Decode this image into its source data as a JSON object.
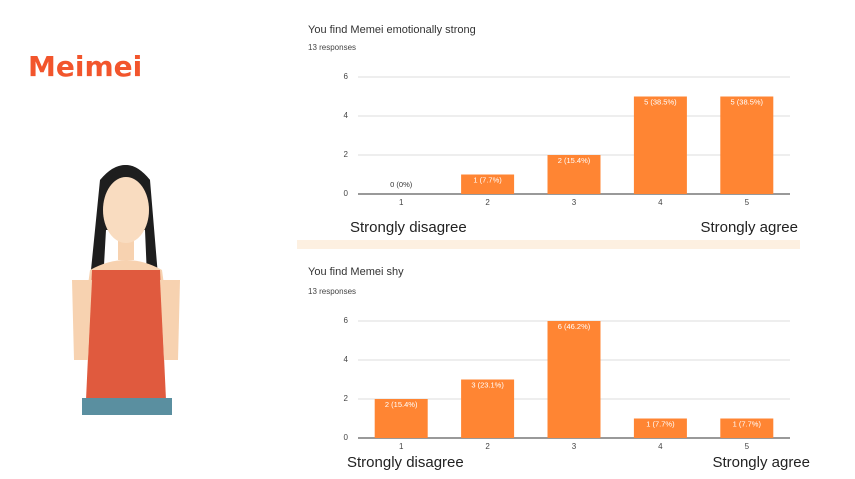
{
  "heading": "Meimei",
  "chart_data": [
    {
      "type": "bar",
      "title": "You find Memei emotionally strong",
      "subtitle": "13 responses",
      "categories": [
        "1",
        "2",
        "3",
        "4",
        "5"
      ],
      "values": [
        0,
        1,
        2,
        5,
        5
      ],
      "value_labels": [
        "0 (0%)",
        "1 (7.7%)",
        "2 (15.4%)",
        "5 (38.5%)",
        "5 (38.5%)"
      ],
      "color": "#ff8533",
      "ylim": [
        0,
        6
      ],
      "yticks": [
        0,
        2,
        4,
        6
      ],
      "grid": true,
      "annotations": [
        "Strongly disagree",
        "Strongly agree"
      ]
    },
    {
      "type": "bar",
      "title": "You find Memei shy",
      "subtitle": "13 responses",
      "categories": [
        "1",
        "2",
        "3",
        "4",
        "5"
      ],
      "values": [
        2,
        3,
        6,
        1,
        1
      ],
      "value_labels": [
        "2 (15.4%)",
        "3 (23.1%)",
        "6 (46.2%)",
        "1 (7.7%)",
        "1 (7.7%)"
      ],
      "color": "#ff8533",
      "ylim": [
        0,
        6
      ],
      "yticks": [
        0,
        2,
        4,
        6
      ],
      "grid": true,
      "annotations": [
        "Strongly disagree",
        "Strongly agree"
      ]
    }
  ]
}
